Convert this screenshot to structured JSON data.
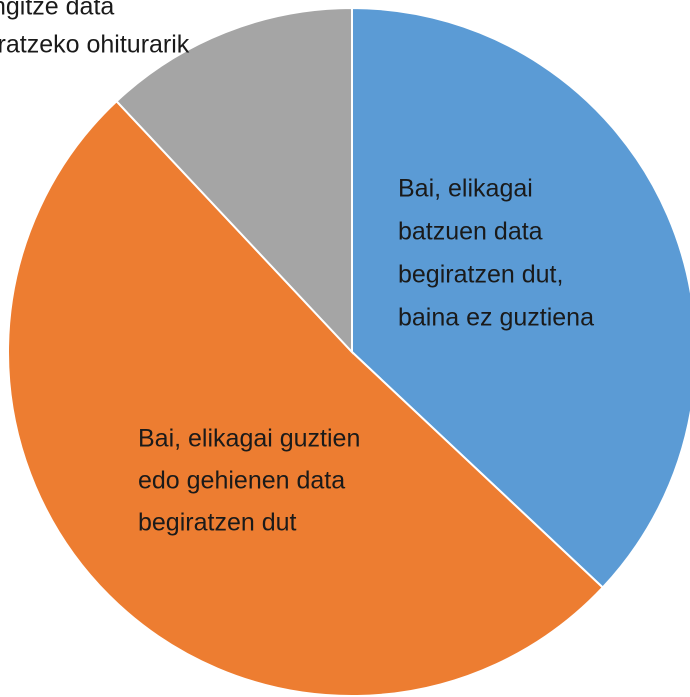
{
  "chart_data": {
    "type": "pie",
    "categories": [
      [
        "Bai, elikagai",
        "batzuen data",
        "begiratzen dut,",
        "baina ez guztiena"
      ],
      [
        "Bai, elikagai guztien",
        "edo gehienen data",
        "begiratzen dut"
      ],
      [
        "ngitze data",
        "iratzeko ohiturarik"
      ]
    ],
    "values": [
      37,
      51,
      12
    ],
    "colors": [
      "#5b9bd5",
      "#ed7d31",
      "#a5a5a5"
    ]
  }
}
